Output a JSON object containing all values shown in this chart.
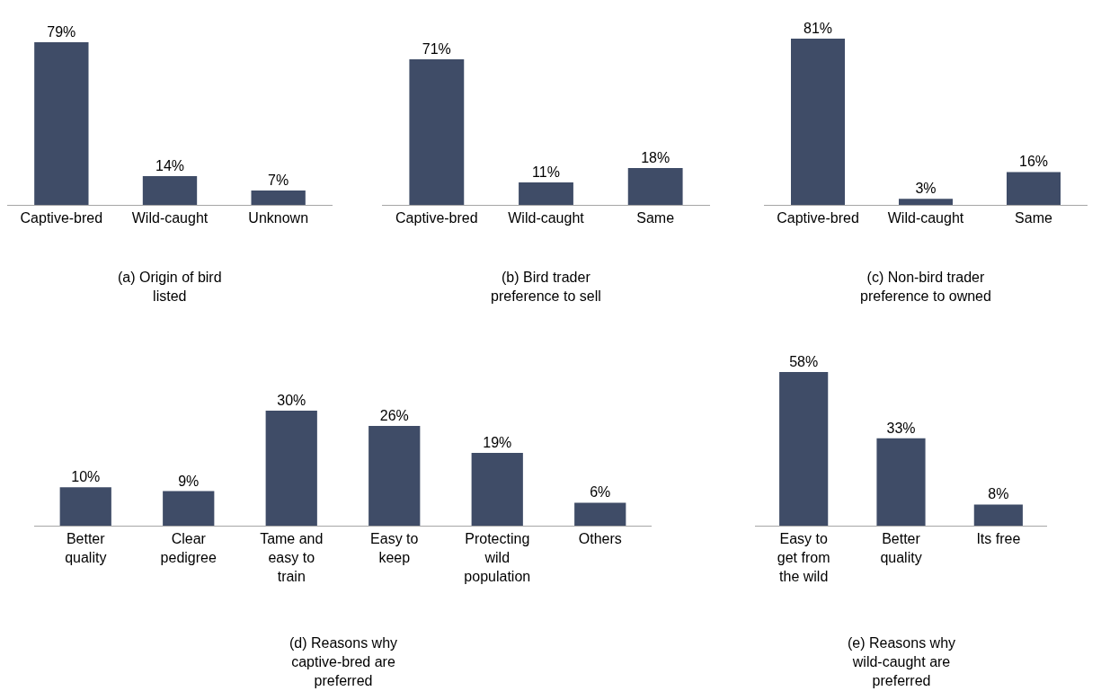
{
  "chart_data": [
    {
      "type": "bar",
      "title": "(a) Origin of bird listed",
      "categories": [
        "Captive-bred",
        "Wild-caught",
        "Unknown"
      ],
      "values": [
        79,
        14,
        7
      ],
      "value_labels": [
        "79%",
        "14%",
        "7%"
      ],
      "color": "#3f4c67"
    },
    {
      "type": "bar",
      "title": "(b) Bird trader preference to sell",
      "categories": [
        "Captive-bred",
        "Wild-caught",
        "Same"
      ],
      "values": [
        71,
        11,
        18
      ],
      "value_labels": [
        "71%",
        "11%",
        "18%"
      ],
      "color": "#3f4c67"
    },
    {
      "type": "bar",
      "title": "(c) Non-bird trader preference to owned",
      "categories": [
        "Captive-bred",
        "Wild-caught",
        "Same"
      ],
      "values": [
        81,
        3,
        16
      ],
      "value_labels": [
        "81%",
        "3%",
        "16%"
      ],
      "color": "#3f4c67"
    },
    {
      "type": "bar",
      "title": "(d) Reasons why captive-bred are preferred",
      "categories": [
        "Better quality",
        "Clear pedigree",
        "Tame and easy to train",
        "Easy to keep",
        "Protecting wild population",
        "Others"
      ],
      "values": [
        10,
        9,
        30,
        26,
        19,
        6
      ],
      "value_labels": [
        "10%",
        "9%",
        "30%",
        "26%",
        "19%",
        "6%"
      ],
      "color": "#3f4c67"
    },
    {
      "type": "bar",
      "title": "(e) Reasons why wild-caught are preferred",
      "categories": [
        "Easy to get from the wild",
        "Better quality",
        "Its free"
      ],
      "values": [
        58,
        33,
        8
      ],
      "value_labels": [
        "58%",
        "33%",
        "8%"
      ],
      "color": "#3f4c67"
    }
  ]
}
